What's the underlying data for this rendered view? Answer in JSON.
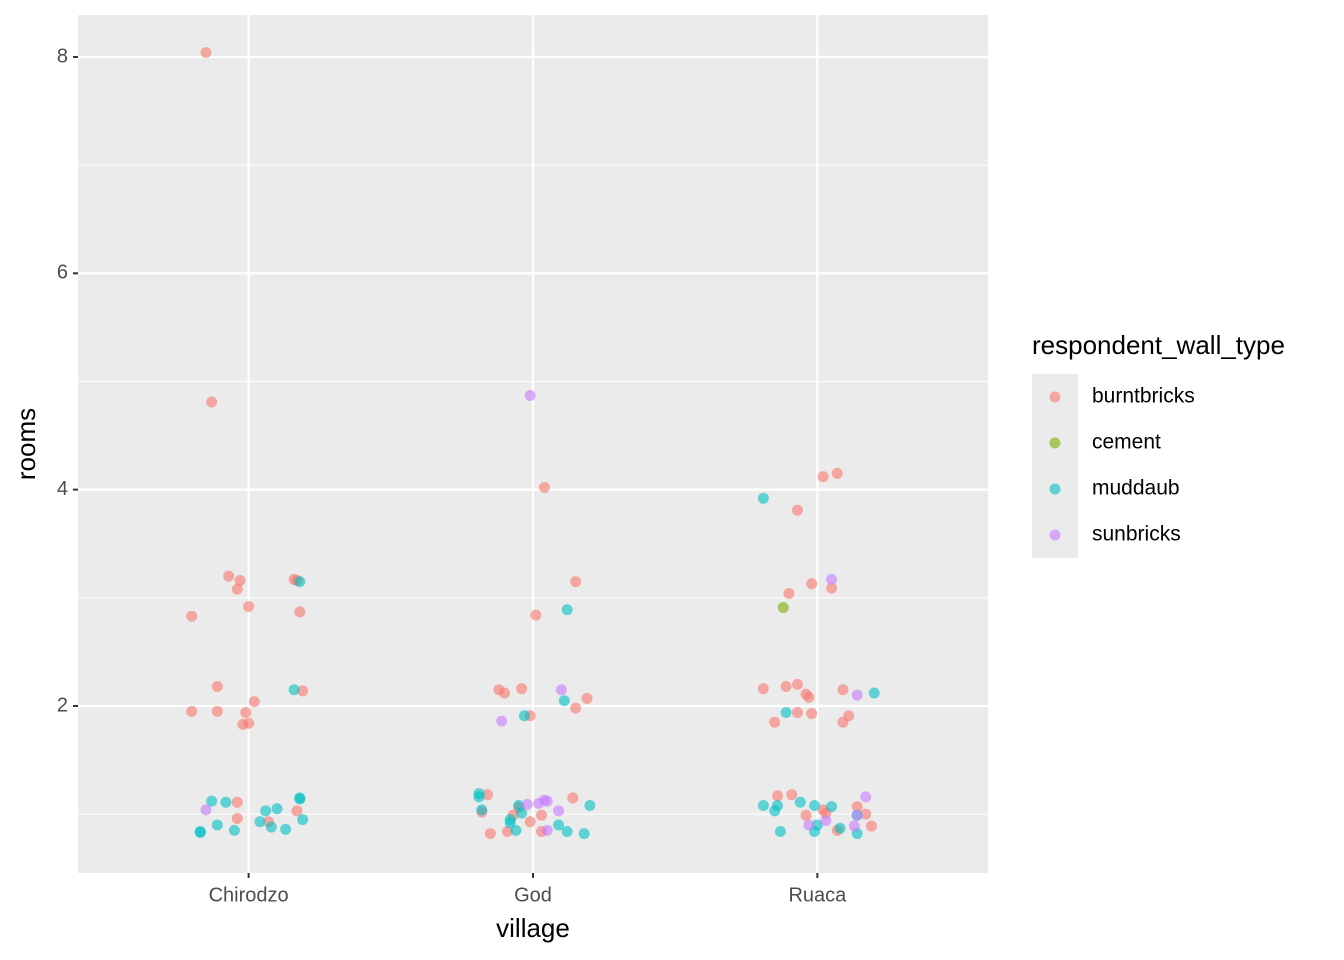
{
  "chart_data": {
    "type": "scatter",
    "x_label": "village",
    "y_label": "rooms",
    "legend_title": "respondent_wall_type",
    "xlim": [
      0.4,
      3.6
    ],
    "ylim": [
      0.456,
      8.388
    ],
    "xticks": [
      {
        "value": 1,
        "label": "Chirodzo"
      },
      {
        "value": 2,
        "label": "God"
      },
      {
        "value": 3,
        "label": "Ruaca"
      }
    ],
    "yticks": [
      2,
      4,
      6,
      8
    ],
    "grid": true,
    "legend_position": "right",
    "series": [
      {
        "name": "burntbricks",
        "color": "#F8766D",
        "x": [
          0.85,
          0.87,
          0.8,
          0.93,
          0.97,
          0.96,
          1.0,
          1.16,
          1.17,
          1.18,
          0.89,
          1.02,
          0.8,
          0.89,
          0.99,
          0.98,
          1.0,
          1.19,
          0.96,
          0.96,
          1.07,
          1.17,
          2.04,
          2.15,
          2.01,
          1.88,
          1.9,
          1.96,
          1.99,
          2.19,
          2.15,
          1.84,
          1.82,
          1.95,
          1.93,
          2.03,
          1.99,
          2.03,
          1.85,
          1.91,
          2.14,
          3.02,
          3.07,
          2.93,
          2.98,
          2.9,
          3.05,
          2.81,
          2.89,
          2.93,
          2.96,
          2.97,
          3.09,
          2.85,
          2.93,
          2.98,
          3.11,
          3.09,
          2.86,
          2.91,
          2.96,
          3.02,
          3.03,
          3.07,
          3.14,
          3.17,
          3.19
        ],
        "y": [
          8.04,
          4.81,
          2.83,
          3.2,
          3.16,
          3.08,
          2.92,
          3.17,
          3.16,
          2.87,
          2.18,
          2.04,
          1.95,
          1.95,
          1.94,
          1.83,
          1.84,
          2.14,
          1.11,
          0.96,
          0.93,
          1.03,
          4.02,
          3.15,
          2.84,
          2.15,
          2.12,
          2.16,
          1.91,
          2.07,
          1.98,
          1.18,
          1.02,
          1.06,
          0.99,
          0.99,
          0.93,
          0.84,
          0.82,
          0.84,
          1.15,
          4.12,
          4.15,
          3.81,
          3.13,
          3.04,
          3.09,
          2.16,
          2.18,
          2.2,
          2.11,
          2.08,
          2.15,
          1.85,
          1.94,
          1.93,
          1.91,
          1.85,
          1.17,
          1.18,
          0.99,
          1.04,
          1.01,
          0.85,
          1.07,
          1.0,
          0.89
        ]
      },
      {
        "name": "cement",
        "color": "#7CAE00",
        "x": [
          2.88
        ],
        "y": [
          2.91
        ]
      },
      {
        "name": "muddaub",
        "color": "#00BFC4",
        "x": [
          1.18,
          1.16,
          0.87,
          0.92,
          1.18,
          1.18,
          1.06,
          1.1,
          1.04,
          1.08,
          1.13,
          1.19,
          0.89,
          0.95,
          0.83,
          0.83,
          2.12,
          2.11,
          1.97,
          1.81,
          1.81,
          1.82,
          1.95,
          1.96,
          1.92,
          1.92,
          1.94,
          2.09,
          2.12,
          2.18,
          2.2,
          2.81,
          2.89,
          3.2,
          2.81,
          2.85,
          2.86,
          2.94,
          2.99,
          3.05,
          3.0,
          2.99,
          3.08,
          3.14,
          3.14,
          2.87
        ],
        "y": [
          3.15,
          2.15,
          1.12,
          1.11,
          1.15,
          1.14,
          1.03,
          1.05,
          0.93,
          0.88,
          0.86,
          0.95,
          0.9,
          0.85,
          0.83,
          0.84,
          2.89,
          2.05,
          1.91,
          1.19,
          1.16,
          1.04,
          1.08,
          1.01,
          0.95,
          0.92,
          0.85,
          0.9,
          0.84,
          0.82,
          1.08,
          3.92,
          1.94,
          2.12,
          1.08,
          1.03,
          1.08,
          1.11,
          1.08,
          1.07,
          0.9,
          0.84,
          0.87,
          0.99,
          0.82,
          0.84
        ]
      },
      {
        "name": "sunbricks",
        "color": "#C77CFF",
        "x": [
          0.85,
          1.99,
          2.1,
          1.89,
          1.98,
          2.02,
          2.04,
          2.05,
          2.09,
          2.05,
          3.05,
          3.14,
          3.17,
          2.97,
          3.03,
          3.13,
          3.14
        ],
        "y": [
          1.04,
          4.87,
          2.15,
          1.86,
          1.09,
          1.1,
          1.13,
          1.12,
          1.03,
          0.85,
          3.17,
          2.1,
          1.16,
          0.9,
          0.94,
          0.89,
          0.99
        ]
      }
    ]
  }
}
